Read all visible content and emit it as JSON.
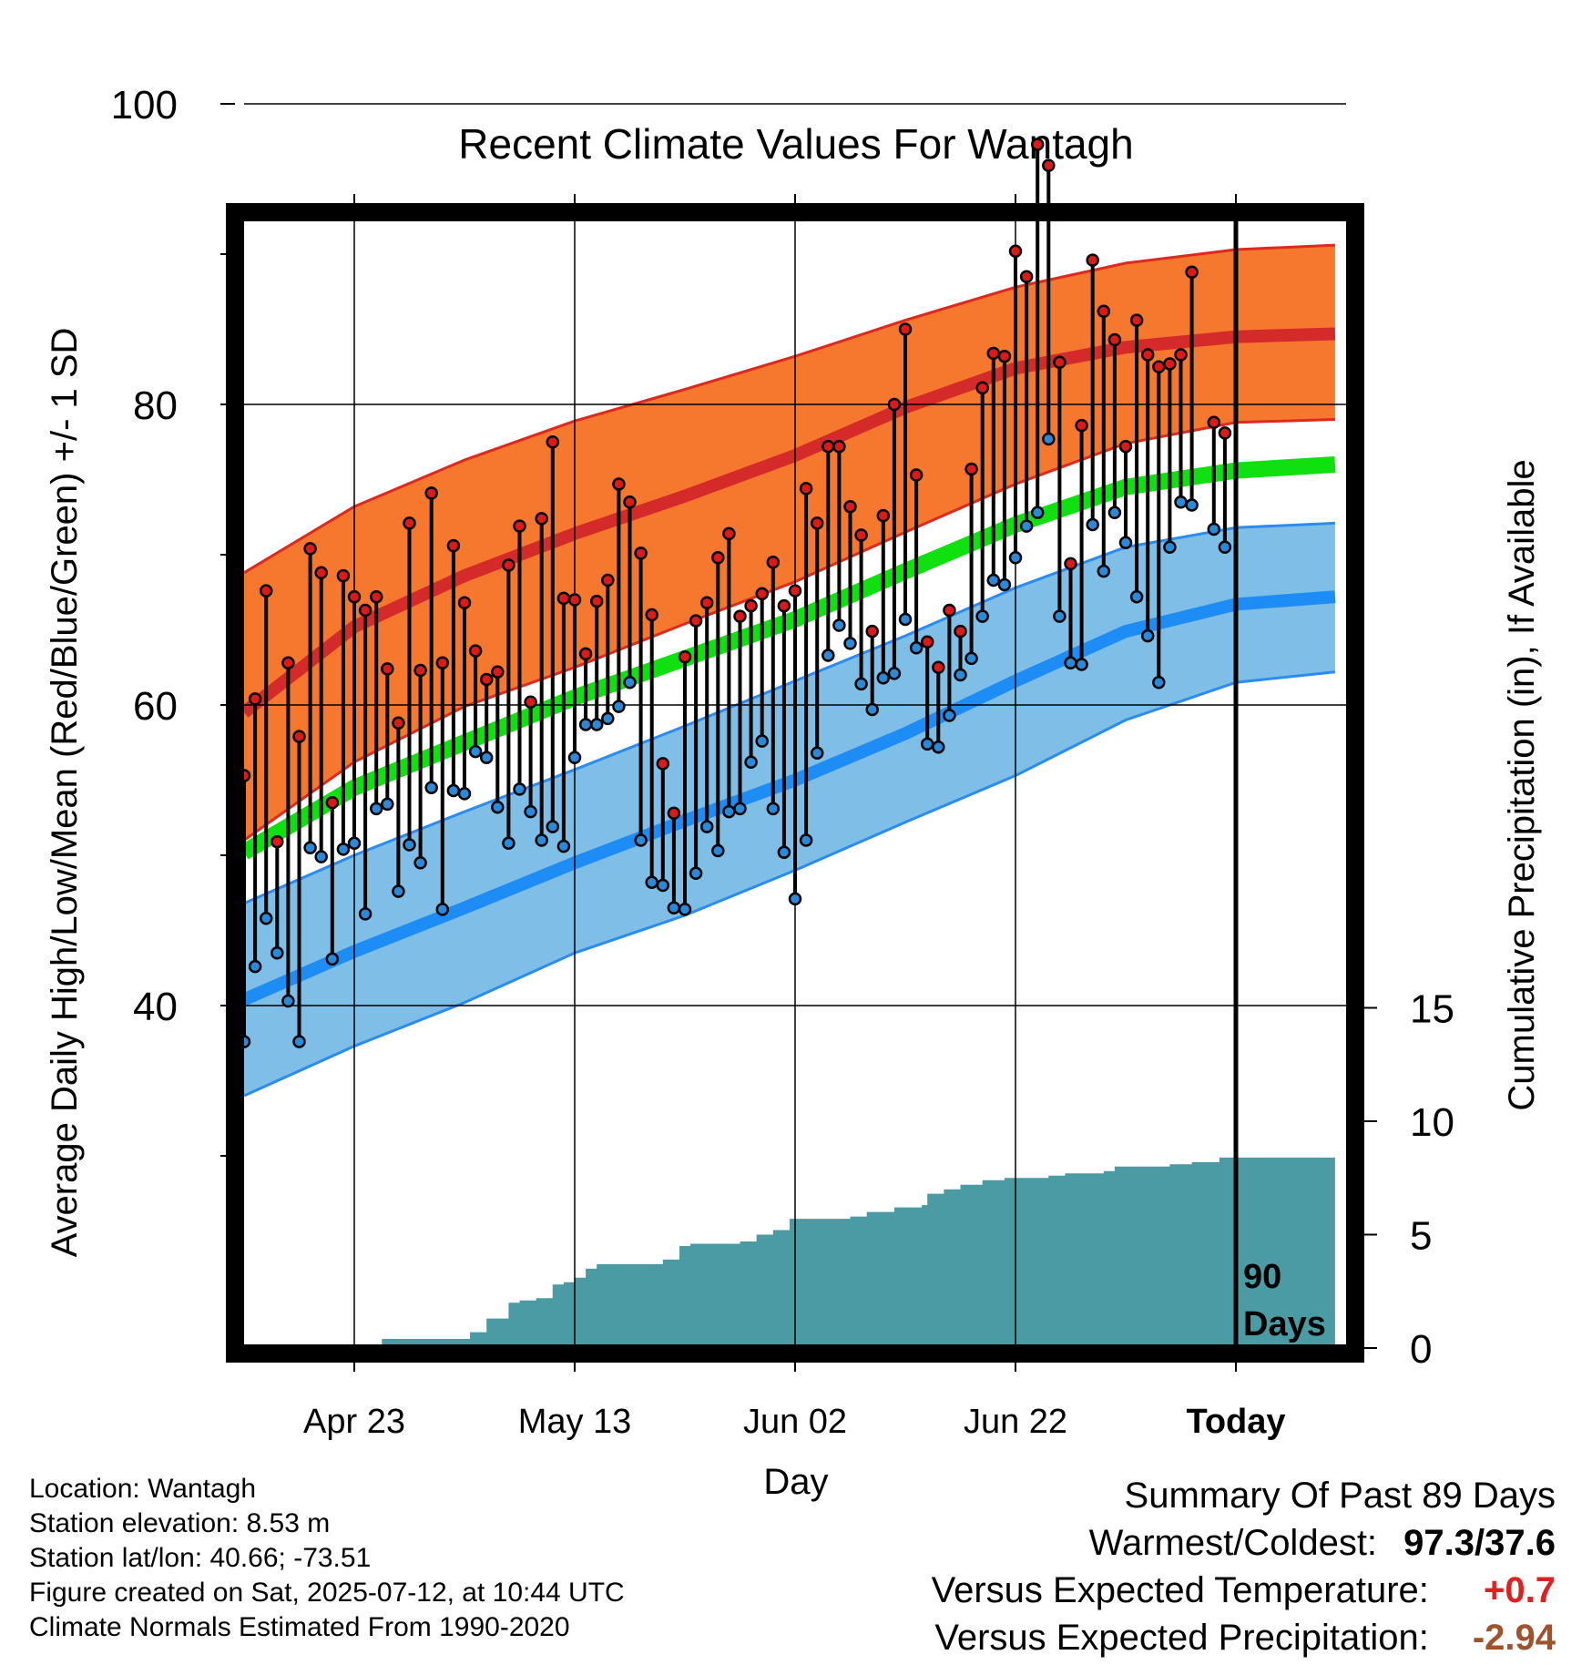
{
  "title": "Recent Climate Values For Wantagh",
  "chart_data": {
    "type": "line",
    "title": "Recent Climate Values For Wantagh",
    "xlabel": "Day",
    "ylabel": "Average Daily High/Low/Mean (Red/Blue/Green) +/- 1 SD",
    "y2label": "Cumulative Precipitation (in), If Available",
    "ylim": [
      28,
      104
    ],
    "y2lim": [
      0,
      20
    ],
    "xlim": [
      0,
      100
    ],
    "y_ticks": [
      40,
      60,
      80,
      100
    ],
    "y_minor_ticks": [
      30,
      50,
      70,
      90
    ],
    "y2_ticks": [
      0,
      5,
      10,
      15
    ],
    "x_ticks": [
      {
        "day": 10,
        "label": "Apr 23"
      },
      {
        "day": 30,
        "label": "May 13"
      },
      {
        "day": 50,
        "label": "Jun 02"
      },
      {
        "day": 70,
        "label": "Jun 22"
      },
      {
        "day": 90,
        "label": "Today"
      }
    ],
    "today_day": 90,
    "today_marker_label": [
      "90",
      "Days"
    ],
    "grid": true,
    "colors": {
      "high_band": "#f5782e",
      "high_band_edge": "#dd2a1e",
      "high_mean": "#d42a2a",
      "low_band": "#7fbee6",
      "low_band_edge": "#2a8cf0",
      "low_mean": "#1e8cf5",
      "mean_line": "#10e010",
      "precip_fill": "#4a9ba3",
      "high_point": "#dd1a1a",
      "low_point": "#2a8ad8",
      "vs_temp": "#dd2222",
      "vs_precip": "#a0522d"
    },
    "normals": {
      "x": [
        0,
        10,
        20,
        30,
        40,
        50,
        60,
        70,
        80,
        90,
        99
      ],
      "high_mean": [
        59.5,
        65.2,
        68.6,
        71.4,
        73.9,
        76.6,
        79.8,
        82.4,
        83.8,
        84.5,
        84.7
      ],
      "high_upper": [
        68.8,
        73.2,
        76.3,
        78.9,
        81.0,
        83.2,
        85.6,
        87.8,
        89.4,
        90.3,
        90.6
      ],
      "high_lower": [
        51.0,
        56.2,
        59.9,
        62.5,
        65.4,
        68.2,
        71.5,
        74.7,
        77.4,
        78.8,
        79.0
      ],
      "mean": [
        50.2,
        54.5,
        57.5,
        60.5,
        63.1,
        65.7,
        68.9,
        72.0,
        74.5,
        75.6,
        76.0
      ],
      "low_mean": [
        40.4,
        43.6,
        46.5,
        49.5,
        52.3,
        55.0,
        58.1,
        61.6,
        64.9,
        66.7,
        67.2
      ],
      "low_upper": [
        46.8,
        50.0,
        52.9,
        55.7,
        58.6,
        61.6,
        64.6,
        67.8,
        70.5,
        71.8,
        72.1
      ],
      "low_lower": [
        34.0,
        37.3,
        40.2,
        43.5,
        46.0,
        49.0,
        52.2,
        55.3,
        59.0,
        61.5,
        62.2
      ]
    },
    "daily": {
      "day": [
        0,
        1,
        2,
        3,
        4,
        5,
        6,
        7,
        8,
        9,
        10,
        11,
        12,
        13,
        14,
        15,
        16,
        17,
        18,
        19,
        20,
        21,
        22,
        23,
        24,
        25,
        26,
        27,
        28,
        29,
        30,
        31,
        32,
        33,
        34,
        35,
        36,
        37,
        38,
        39,
        40,
        41,
        42,
        43,
        44,
        45,
        46,
        47,
        48,
        49,
        50,
        51,
        52,
        53,
        54,
        55,
        56,
        57,
        58,
        59,
        60,
        61,
        62,
        63,
        64,
        65,
        66,
        67,
        68,
        69,
        70,
        71,
        72,
        73,
        74,
        75,
        76,
        77,
        78,
        79,
        80,
        81,
        82,
        83,
        84,
        85,
        86,
        88,
        89
      ],
      "high": [
        55.3,
        60.4,
        67.6,
        50.9,
        62.8,
        57.9,
        70.4,
        68.8,
        53.5,
        68.6,
        67.2,
        66.3,
        67.2,
        62.4,
        58.8,
        72.1,
        62.3,
        74.1,
        62.8,
        70.6,
        66.8,
        63.6,
        61.7,
        62.2,
        69.3,
        71.9,
        60.2,
        72.4,
        77.5,
        67.1,
        67.0,
        63.4,
        66.9,
        68.3,
        74.7,
        73.5,
        70.1,
        66.0,
        56.1,
        52.8,
        63.2,
        65.6,
        66.8,
        69.8,
        71.4,
        65.9,
        66.6,
        67.4,
        69.5,
        66.6,
        67.6,
        74.4,
        72.1,
        77.2,
        77.2,
        73.2,
        71.3,
        64.9,
        72.6,
        80.0,
        85.0,
        75.3,
        64.2,
        62.5,
        66.3,
        64.9,
        75.7,
        81.1,
        83.4,
        83.2,
        90.2,
        88.5,
        97.3,
        95.9,
        82.8,
        69.4,
        78.6,
        89.6,
        86.2,
        84.3,
        77.2,
        85.6,
        83.3,
        82.5,
        82.7,
        83.3,
        88.8,
        78.8,
        78.1
      ],
      "low": [
        37.6,
        42.6,
        45.8,
        43.5,
        40.3,
        37.6,
        50.5,
        49.9,
        43.1,
        50.4,
        50.8,
        46.1,
        53.1,
        53.4,
        47.6,
        50.7,
        49.5,
        54.5,
        46.4,
        54.3,
        54.1,
        56.9,
        56.5,
        53.2,
        50.8,
        54.4,
        52.9,
        51.0,
        51.9,
        50.6,
        56.5,
        58.7,
        58.7,
        59.1,
        59.9,
        61.5,
        51.0,
        48.2,
        48.0,
        46.5,
        46.4,
        48.8,
        51.9,
        50.3,
        52.9,
        53.1,
        56.2,
        57.6,
        53.1,
        50.2,
        47.1,
        51.0,
        56.8,
        63.3,
        65.3,
        64.1,
        61.4,
        59.7,
        61.8,
        62.1,
        65.7,
        63.8,
        57.4,
        57.2,
        59.3,
        62.0,
        63.1,
        65.9,
        68.3,
        68.0,
        69.8,
        71.9,
        72.8,
        77.7,
        65.9,
        62.8,
        62.7,
        72.0,
        68.9,
        72.8,
        70.8,
        67.2,
        64.6,
        61.5,
        70.5,
        73.5,
        73.3,
        71.7,
        70.5
      ]
    },
    "precip": {
      "x": [
        0,
        12.5,
        20.5,
        22,
        24,
        25,
        26.5,
        28,
        29,
        30,
        31,
        32,
        38,
        39.5,
        40.5,
        45,
        46.5,
        48,
        49.5,
        55,
        56.5,
        59,
        61.5,
        62,
        63.5,
        65,
        67,
        69,
        73,
        74.5,
        78,
        79,
        84,
        86,
        88.5,
        99
      ],
      "y": [
        0,
        0.4,
        0.7,
        1.3,
        2.0,
        2.1,
        2.2,
        2.8,
        2.9,
        3.1,
        3.5,
        3.7,
        3.9,
        4.5,
        4.6,
        4.7,
        5.0,
        5.2,
        5.7,
        5.8,
        6.0,
        6.2,
        6.3,
        6.8,
        7.0,
        7.2,
        7.4,
        7.5,
        7.6,
        7.7,
        7.8,
        8.0,
        8.1,
        8.2,
        8.4,
        8.3
      ]
    }
  },
  "info": {
    "location": "Location: Wantagh",
    "elevation": "Station elevation: 8.53 m",
    "latlon": "Station lat/lon: 40.66; -73.51",
    "created": "Figure created on Sat, 2025-07-12, at 10:44 UTC",
    "normals": "Climate Normals Estimated From 1990-2020"
  },
  "summary": {
    "title": "Summary Of Past 89 Days",
    "warm_cold_label": "Warmest/Coldest:",
    "warm_cold_value": "97.3/37.6",
    "vs_temp_label": "Versus Expected Temperature:",
    "vs_temp_value": "+0.7",
    "vs_precip_label": "Versus Expected Precipitation:",
    "vs_precip_value": "-2.94"
  }
}
